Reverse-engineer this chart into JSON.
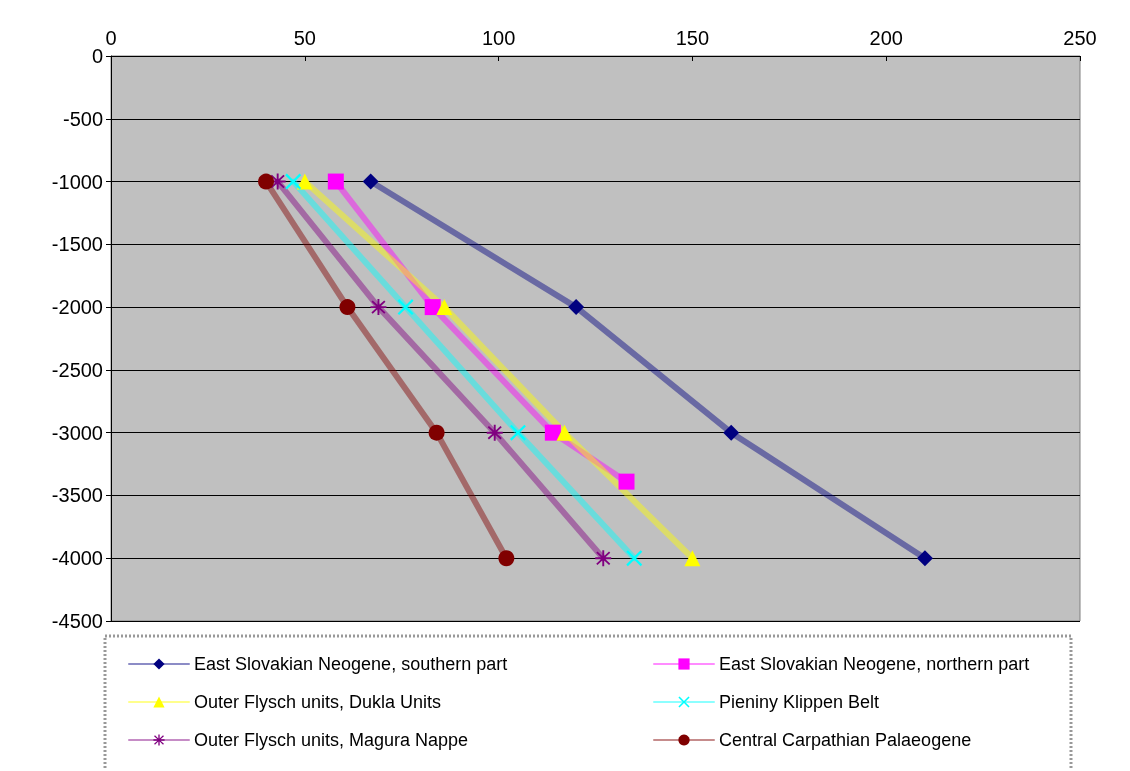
{
  "chart_data": {
    "type": "line",
    "xlim": [
      0,
      250
    ],
    "xticks": [
      0,
      50,
      100,
      150,
      200,
      250
    ],
    "ylim": [
      -4500,
      0
    ],
    "yticks": [
      0,
      -500,
      -1000,
      -1500,
      -2000,
      -2500,
      -3000,
      -3500,
      -4000,
      -4500
    ],
    "grid": "y",
    "legend": "bottom",
    "line_style": "solid",
    "series": [
      {
        "name": "East Slovakian Neogene, southern part",
        "color": "#000080",
        "marker": "diamond",
        "x": [
          67,
          120,
          160,
          210
        ],
        "values": [
          -1000,
          -2000,
          -3000,
          -4000
        ]
      },
      {
        "name": "East Slovakian Neogene, northern part",
        "color": "#ff00ff",
        "marker": "square",
        "x": [
          58,
          83,
          114,
          133
        ],
        "values": [
          -1000,
          -2000,
          -3000,
          -3390
        ]
      },
      {
        "name": "Outer Flysch units, Dukla Units",
        "color": "#ffff00",
        "marker": "triangle",
        "x": [
          50,
          86,
          117,
          150
        ],
        "values": [
          -1000,
          -2000,
          -3000,
          -4000
        ]
      },
      {
        "name": "Pieniny Klippen Belt",
        "color": "#00ffff",
        "marker": "cross",
        "x": [
          47,
          76,
          105,
          135
        ],
        "values": [
          -1000,
          -2000,
          -3000,
          -4000
        ]
      },
      {
        "name": "Outer Flysch units, Magura Nappe",
        "color": "#800080",
        "marker": "star",
        "x": [
          43,
          69,
          99,
          127
        ],
        "values": [
          -1000,
          -2000,
          -3000,
          -4000
        ]
      },
      {
        "name": "Central Carpathian Palaeogene",
        "color": "#800000",
        "marker": "circle",
        "x": [
          40,
          61,
          84,
          102
        ],
        "values": [
          -1000,
          -2000,
          -3000,
          -4000
        ]
      }
    ]
  }
}
